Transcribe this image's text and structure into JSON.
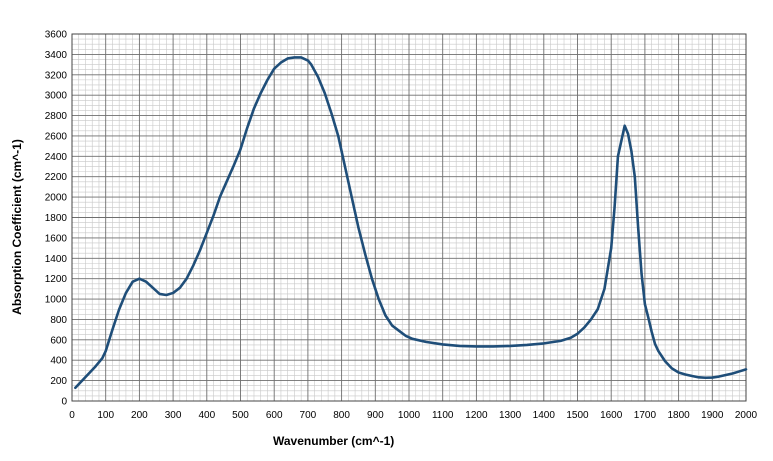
{
  "chart_data": {
    "type": "line",
    "title": "",
    "xlabel": "Wavenumber (cm^-1)",
    "ylabel": "Absorption Coefficient (cm^-1)",
    "xlim": [
      0,
      2000
    ],
    "ylim": [
      0,
      3600
    ],
    "x_ticks": [
      0,
      100,
      200,
      300,
      400,
      500,
      600,
      700,
      800,
      900,
      1000,
      1100,
      1200,
      1300,
      1400,
      1500,
      1600,
      1700,
      1800,
      1900,
      2000
    ],
    "y_ticks": [
      0,
      200,
      400,
      600,
      800,
      1000,
      1200,
      1400,
      1600,
      1800,
      2000,
      2200,
      2400,
      2600,
      2800,
      3000,
      3200,
      3400,
      3600
    ],
    "grid": true,
    "legend": "none",
    "line_color": "#1f4e79",
    "series": [
      {
        "values": [
          [
            10,
            130
          ],
          [
            30,
            200
          ],
          [
            50,
            270
          ],
          [
            70,
            340
          ],
          [
            90,
            420
          ],
          [
            100,
            490
          ],
          [
            120,
            700
          ],
          [
            140,
            900
          ],
          [
            160,
            1060
          ],
          [
            180,
            1170
          ],
          [
            200,
            1200
          ],
          [
            220,
            1170
          ],
          [
            240,
            1110
          ],
          [
            260,
            1050
          ],
          [
            280,
            1040
          ],
          [
            300,
            1060
          ],
          [
            320,
            1110
          ],
          [
            340,
            1200
          ],
          [
            360,
            1330
          ],
          [
            380,
            1480
          ],
          [
            400,
            1650
          ],
          [
            420,
            1820
          ],
          [
            440,
            2010
          ],
          [
            460,
            2160
          ],
          [
            480,
            2310
          ],
          [
            500,
            2470
          ],
          [
            520,
            2680
          ],
          [
            540,
            2870
          ],
          [
            560,
            3020
          ],
          [
            580,
            3150
          ],
          [
            600,
            3260
          ],
          [
            620,
            3320
          ],
          [
            640,
            3360
          ],
          [
            660,
            3370
          ],
          [
            680,
            3370
          ],
          [
            700,
            3340
          ],
          [
            710,
            3300
          ],
          [
            730,
            3180
          ],
          [
            750,
            3020
          ],
          [
            770,
            2820
          ],
          [
            790,
            2600
          ],
          [
            810,
            2300
          ],
          [
            830,
            2000
          ],
          [
            850,
            1700
          ],
          [
            870,
            1440
          ],
          [
            890,
            1200
          ],
          [
            910,
            1000
          ],
          [
            930,
            840
          ],
          [
            950,
            740
          ],
          [
            970,
            690
          ],
          [
            990,
            640
          ],
          [
            1010,
            610
          ],
          [
            1050,
            580
          ],
          [
            1100,
            555
          ],
          [
            1150,
            540
          ],
          [
            1200,
            535
          ],
          [
            1250,
            535
          ],
          [
            1300,
            540
          ],
          [
            1350,
            550
          ],
          [
            1400,
            565
          ],
          [
            1450,
            590
          ],
          [
            1480,
            620
          ],
          [
            1500,
            660
          ],
          [
            1520,
            720
          ],
          [
            1540,
            800
          ],
          [
            1560,
            900
          ],
          [
            1580,
            1100
          ],
          [
            1600,
            1500
          ],
          [
            1610,
            1900
          ],
          [
            1620,
            2400
          ],
          [
            1640,
            2700
          ],
          [
            1650,
            2620
          ],
          [
            1660,
            2450
          ],
          [
            1670,
            2200
          ],
          [
            1680,
            1700
          ],
          [
            1690,
            1250
          ],
          [
            1700,
            950
          ],
          [
            1710,
            820
          ],
          [
            1720,
            680
          ],
          [
            1730,
            560
          ],
          [
            1740,
            490
          ],
          [
            1760,
            390
          ],
          [
            1780,
            320
          ],
          [
            1800,
            280
          ],
          [
            1820,
            260
          ],
          [
            1840,
            245
          ],
          [
            1860,
            232
          ],
          [
            1880,
            228
          ],
          [
            1900,
            230
          ],
          [
            1920,
            240
          ],
          [
            1940,
            255
          ],
          [
            1960,
            270
          ],
          [
            1980,
            290
          ],
          [
            2000,
            310
          ]
        ]
      }
    ]
  }
}
